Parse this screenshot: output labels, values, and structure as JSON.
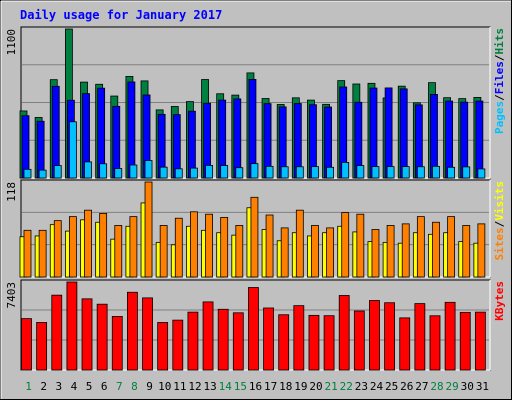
{
  "chart_data": {
    "type": "bar",
    "title": "Daily usage for January 2017",
    "days": [
      "1",
      "2",
      "3",
      "4",
      "5",
      "6",
      "7",
      "8",
      "9",
      "10",
      "11",
      "12",
      "13",
      "14",
      "15",
      "16",
      "17",
      "18",
      "19",
      "20",
      "21",
      "22",
      "23",
      "24",
      "25",
      "26",
      "27",
      "28",
      "29",
      "30",
      "31"
    ],
    "weekend_days": [
      1,
      7,
      8,
      14,
      15,
      21,
      22,
      28,
      29
    ],
    "colors": {
      "hits": "#008040",
      "files": "#0000ff",
      "pages": "#00c0ff",
      "visits": "#ffff00",
      "sites": "#ff8000",
      "kbytes": "#ff0000",
      "title": "#0000ff",
      "weekday": "#000000",
      "weekend": "#008040",
      "panel": "#c0c0c0",
      "grid": "#808080"
    },
    "panels": [
      {
        "id": "traffic",
        "max_label": "1100",
        "ymax": 1100,
        "legend": [
          {
            "label": "Hits",
            "color": "#008040"
          },
          {
            "label": "Files",
            "color": "#0000ff"
          },
          {
            "label": "Pages",
            "color": "#00c0ff"
          }
        ],
        "series": [
          {
            "name": "Hits",
            "values": [
              495,
              447,
              726,
              1100,
              708,
              692,
              605,
              750,
              717,
              503,
              528,
              564,
              727,
              622,
              612,
              776,
              587,
              543,
              592,
              575,
              544,
              719,
              694,
              699,
              591,
              678,
              555,
              704,
              593,
              586,
              595
            ]
          },
          {
            "name": "Files",
            "values": [
              460,
              419,
              677,
              574,
              623,
              663,
              529,
              709,
              613,
              470,
              468,
              493,
              552,
              575,
              584,
              728,
              549,
              525,
              550,
              541,
              524,
              672,
              559,
              664,
              665,
              658,
              540,
              617,
              568,
              560,
              568
            ]
          },
          {
            "name": "Pages",
            "values": [
              64,
              58,
              92,
              415,
              119,
              105,
              70,
              96,
              129,
              80,
              68,
              73,
              93,
              92,
              76,
              106,
              86,
              83,
              83,
              84,
              79,
              115,
              92,
              84,
              84,
              84,
              83,
              86,
              79,
              82,
              67
            ]
          }
        ]
      },
      {
        "id": "visitors",
        "max_label": "118",
        "ymax": 118,
        "legend": [
          {
            "label": "Visits",
            "color": "#ffff00"
          },
          {
            "label": "Sites",
            "color": "#ff8000"
          }
        ],
        "series": [
          {
            "name": "Visits",
            "values": [
              50,
              51,
              65,
              57,
              71,
              68,
              47,
              63,
              92,
              43,
              40,
              63,
              58,
              55,
              52,
              86,
              59,
              45,
              55,
              51,
              55,
              63,
              56,
              44,
              43,
              42,
              55,
              53,
              55,
              44,
              42
            ]
          },
          {
            "name": "Sites",
            "values": [
              58,
              58,
              70,
              75,
              83,
              79,
              64,
              75,
              118,
              64,
              73,
              81,
              78,
              74,
              64,
              99,
              77,
              61,
              83,
              64,
              61,
              80,
              78,
              59,
              64,
              66,
              75,
              68,
              75,
              64,
              66
            ]
          }
        ]
      },
      {
        "id": "kbytes",
        "max_label": "7403",
        "ymax": 7403,
        "legend": [
          {
            "label": "KBytes",
            "color": "#ff0000"
          }
        ],
        "series": [
          {
            "name": "KBytes",
            "values": [
              4322,
              4000,
              6296,
              7403,
              5987,
              5536,
              4507,
              6541,
              6068,
              3996,
              4195,
              4868,
              5730,
              5108,
              4813,
              6939,
              5217,
              4649,
              5414,
              4598,
              4568,
              6268,
              4963,
              5847,
              5661,
              4386,
              5588,
              4562,
              5694,
              4849,
              4868
            ]
          }
        ]
      }
    ]
  }
}
